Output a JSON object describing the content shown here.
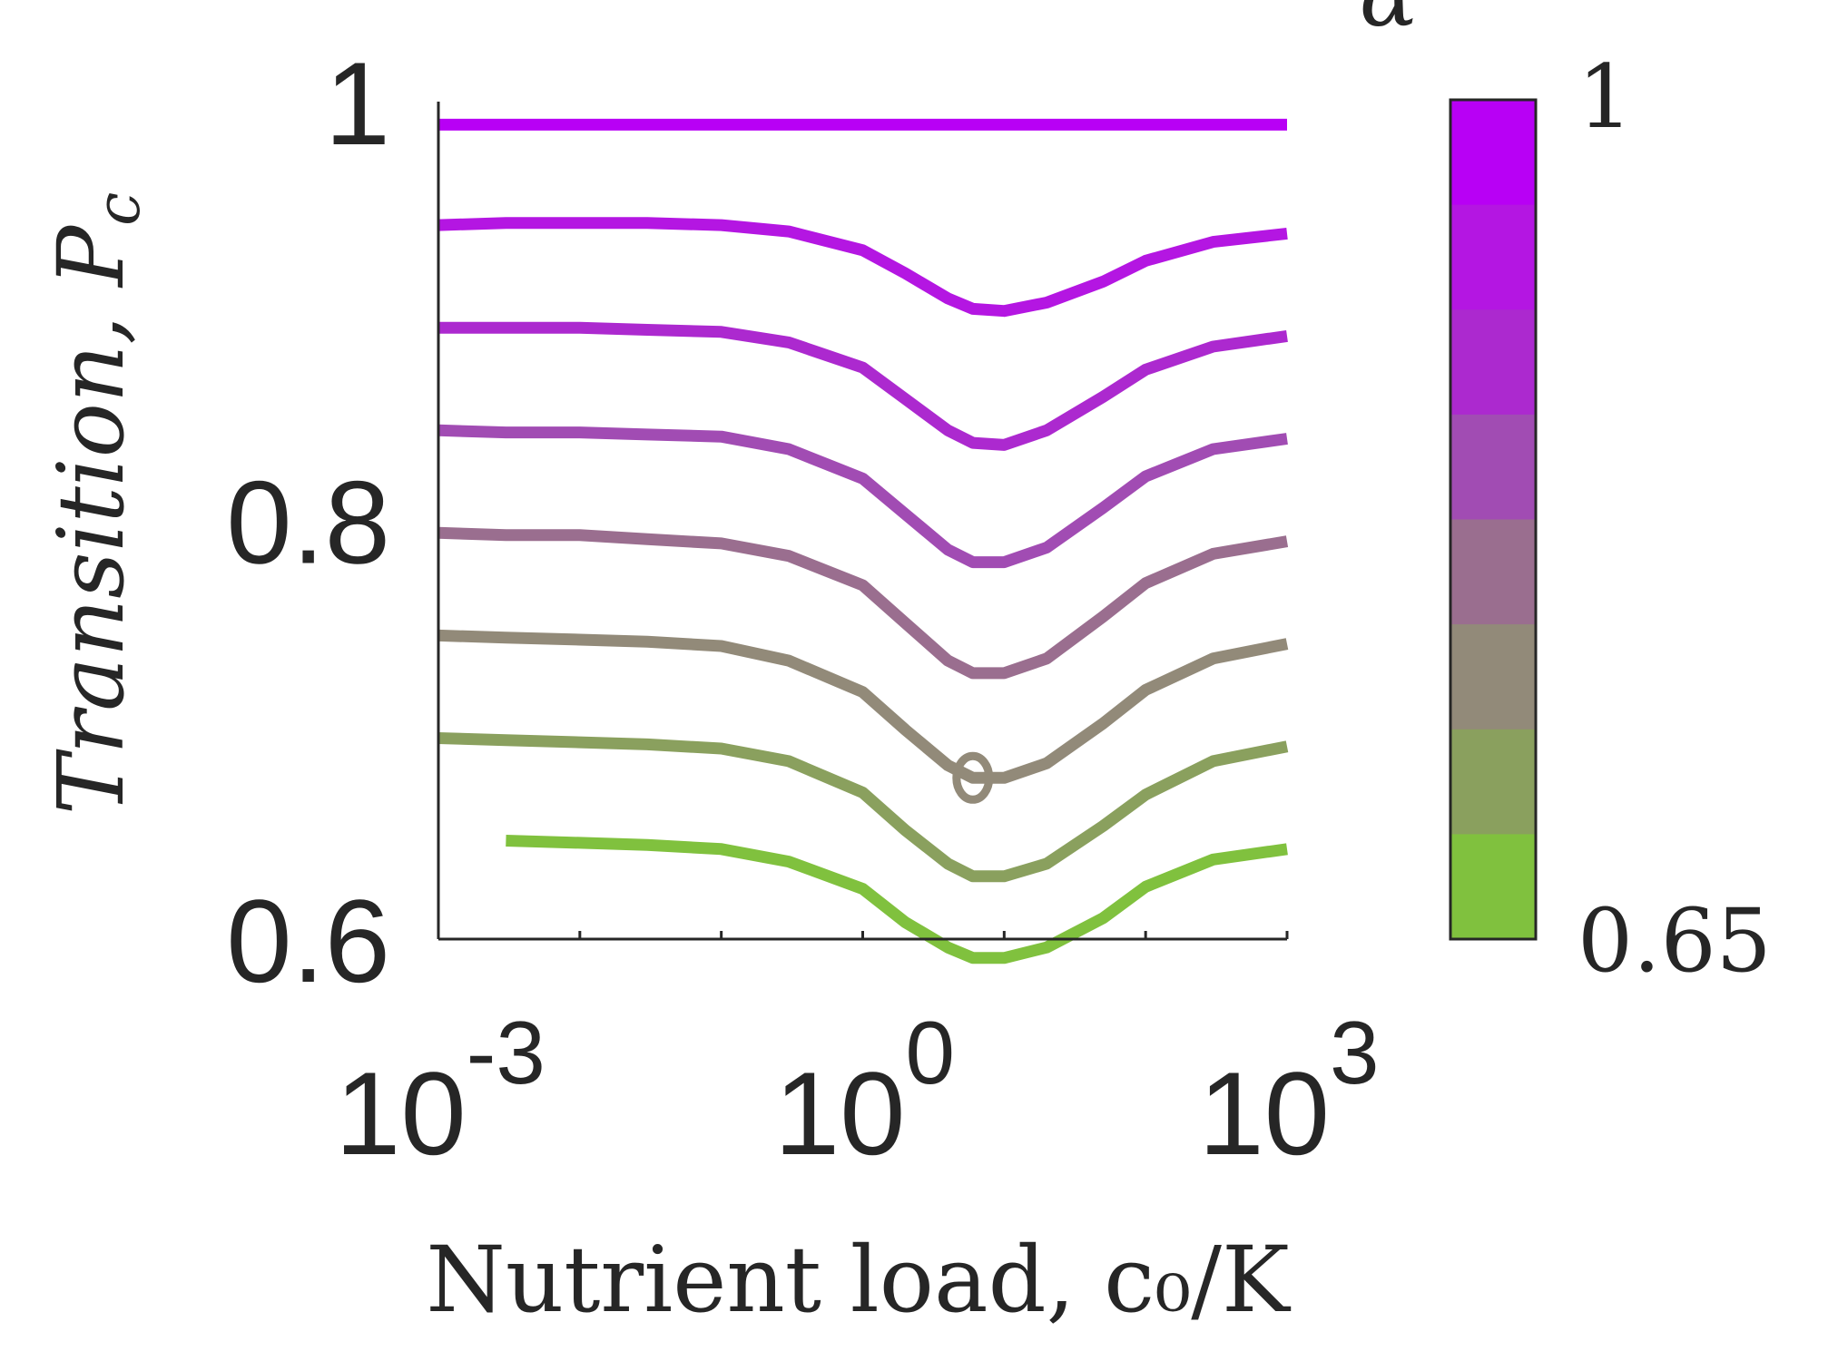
{
  "chart_data": {
    "type": "line",
    "xlabel": "Nutrient load, c₀/K",
    "ylabel": "Transition, P",
    "ylabel_subscript": "c",
    "x_scale": "log",
    "xlim": [
      0.001,
      1000
    ],
    "ylim": [
      0.6,
      1.0
    ],
    "x_ticks": [
      0.001,
      0.01,
      0.1,
      1,
      10,
      100,
      1000
    ],
    "x_tick_labels": [
      {
        "base": "10",
        "exp": "-3",
        "value": 0.001
      },
      {
        "base": "10",
        "exp": "0",
        "value": 1
      },
      {
        "base": "10",
        "exp": "3",
        "value": 1000
      }
    ],
    "y_tick_labels": [
      {
        "text": "1",
        "value": 1.0
      },
      {
        "text": "0.8",
        "value": 0.8
      },
      {
        "text": "0.6",
        "value": 0.6
      }
    ],
    "grid": false,
    "colorbar": {
      "label": "α",
      "min_label": "1",
      "max_label": "0.65",
      "colors": [
        "#b800f5",
        "#b416e2",
        "#ac29cf",
        "#a14cb3",
        "#9a6e8f",
        "#928a79",
        "#8aa05e",
        "#80c13e"
      ]
    },
    "x": [
      0.001,
      0.003,
      0.01,
      0.03,
      0.1,
      0.3,
      1,
      2,
      4,
      6,
      10,
      20,
      50,
      100,
      300,
      1000
    ],
    "series": [
      {
        "color": "#b800f5",
        "values": [
          0.989,
          0.989,
          0.989,
          0.989,
          0.989,
          0.989,
          0.989,
          0.989,
          0.989,
          0.989,
          0.989,
          0.989,
          0.989,
          0.989,
          0.989,
          0.989
        ]
      },
      {
        "color": "#b416e2",
        "values": [
          0.941,
          0.942,
          0.942,
          0.942,
          0.941,
          0.938,
          0.929,
          0.918,
          0.906,
          0.901,
          0.9,
          0.904,
          0.914,
          0.924,
          0.933,
          0.937
        ]
      },
      {
        "color": "#ac29cf",
        "values": [
          0.892,
          0.892,
          0.892,
          0.891,
          0.89,
          0.885,
          0.873,
          0.858,
          0.843,
          0.837,
          0.836,
          0.843,
          0.859,
          0.872,
          0.883,
          0.888
        ]
      },
      {
        "color": "#a14cb3",
        "values": [
          0.843,
          0.842,
          0.842,
          0.841,
          0.84,
          0.834,
          0.82,
          0.803,
          0.786,
          0.78,
          0.78,
          0.787,
          0.806,
          0.821,
          0.834,
          0.839
        ]
      },
      {
        "color": "#9a6e8f",
        "values": [
          0.794,
          0.793,
          0.793,
          0.791,
          0.789,
          0.783,
          0.769,
          0.751,
          0.733,
          0.727,
          0.727,
          0.734,
          0.754,
          0.77,
          0.784,
          0.79
        ]
      },
      {
        "color": "#928a79",
        "values": [
          0.745,
          0.744,
          0.743,
          0.742,
          0.74,
          0.733,
          0.718,
          0.7,
          0.683,
          0.677,
          0.677,
          0.684,
          0.703,
          0.719,
          0.734,
          0.741
        ]
      },
      {
        "color": "#8aa05e",
        "values": [
          0.696,
          0.695,
          0.694,
          0.693,
          0.691,
          0.685,
          0.67,
          0.652,
          0.636,
          0.63,
          0.63,
          0.636,
          0.654,
          0.669,
          0.685,
          0.692
        ]
      },
      {
        "color": "#80c13e",
        "values": [
          null,
          0.647,
          0.646,
          0.645,
          0.643,
          0.637,
          0.624,
          0.608,
          0.596,
          0.591,
          0.591,
          0.596,
          0.61,
          0.625,
          0.638,
          0.643
        ]
      }
    ]
  }
}
